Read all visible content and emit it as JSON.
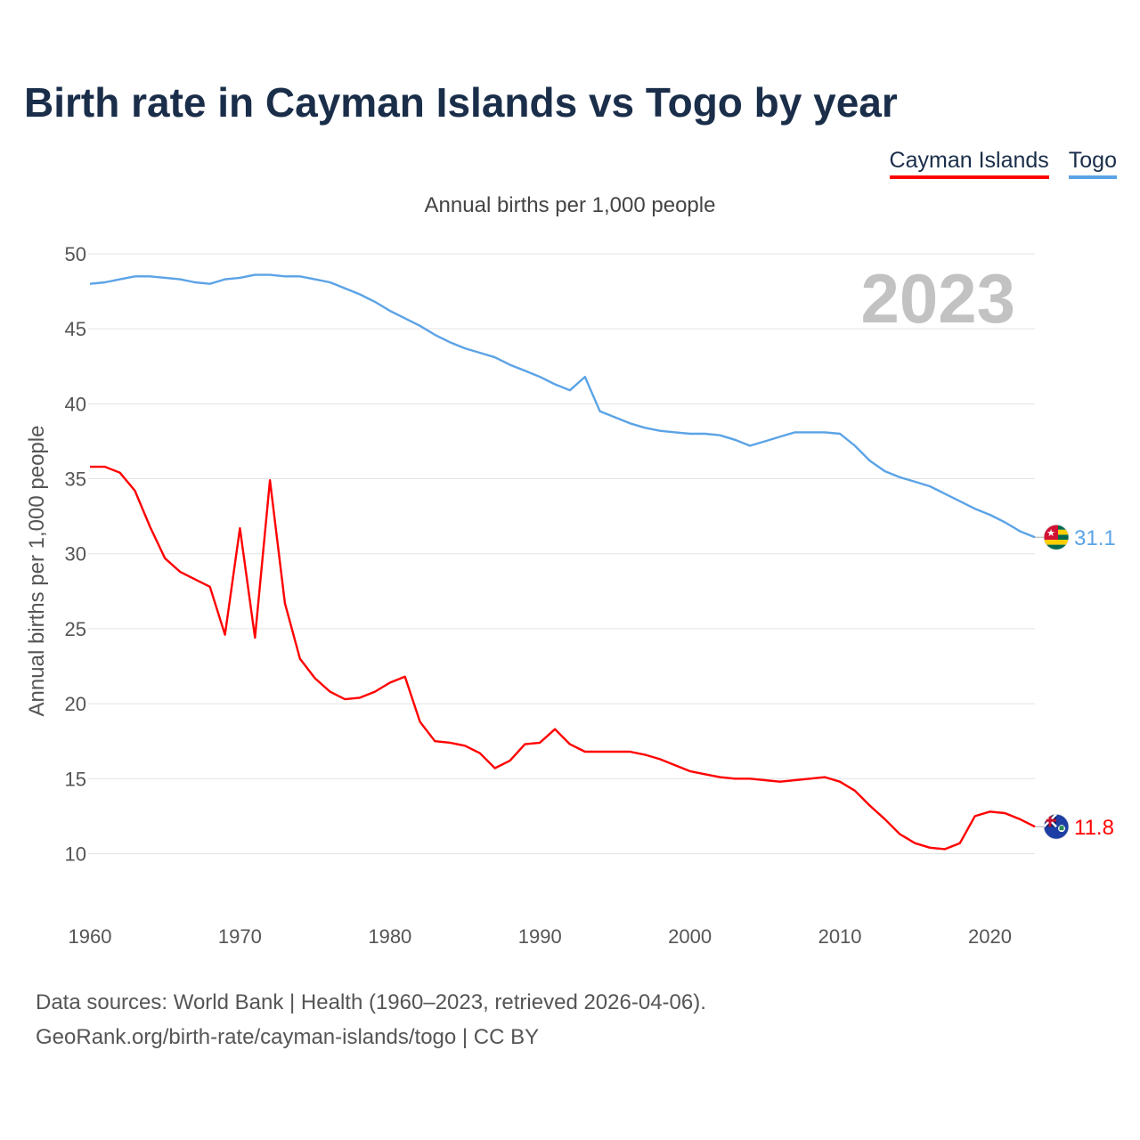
{
  "title": "Birth rate in Cayman Islands vs Togo by year",
  "legend": [
    {
      "name": "Cayman Islands",
      "color": "#ff0000"
    },
    {
      "name": "Togo",
      "color": "#5ba3e6"
    }
  ],
  "subtitle": "Annual births per 1,000 people",
  "year_label": "2023",
  "source_line1": "Data sources: World Bank | Health (1960–2023, retrieved 2026-04-06).",
  "source_line2": "GeoRank.org/birth-rate/cayman-islands/togo | CC BY",
  "chart_data": {
    "type": "line",
    "title": "Birth rate in Cayman Islands vs Togo by year",
    "ylabel": "Annual births per 1,000 people",
    "xlabel": "",
    "xlim": [
      1960,
      2023
    ],
    "ylim": [
      7,
      50
    ],
    "yticks": [
      10,
      15,
      20,
      25,
      30,
      35,
      40,
      45,
      50
    ],
    "xticks": [
      1960,
      1970,
      1980,
      1990,
      2000,
      2010,
      2020
    ],
    "grid": true,
    "legend_position": "top-right",
    "x": [
      1960,
      1961,
      1962,
      1963,
      1964,
      1965,
      1966,
      1967,
      1968,
      1969,
      1970,
      1971,
      1972,
      1973,
      1974,
      1975,
      1976,
      1977,
      1978,
      1979,
      1980,
      1981,
      1982,
      1983,
      1984,
      1985,
      1986,
      1987,
      1988,
      1989,
      1990,
      1991,
      1992,
      1993,
      1994,
      1995,
      1996,
      1997,
      1998,
      1999,
      2000,
      2001,
      2002,
      2003,
      2004,
      2005,
      2006,
      2007,
      2008,
      2009,
      2010,
      2011,
      2012,
      2013,
      2014,
      2015,
      2016,
      2017,
      2018,
      2019,
      2020,
      2021,
      2022,
      2023
    ],
    "series": [
      {
        "name": "Cayman Islands",
        "color": "#ff0000",
        "end_label": "11.8",
        "values": [
          35.8,
          35.8,
          35.4,
          34.2,
          31.8,
          29.7,
          28.8,
          28.3,
          27.8,
          24.6,
          31.7,
          24.4,
          34.9,
          26.7,
          23.0,
          21.7,
          20.8,
          20.3,
          20.4,
          20.8,
          21.4,
          21.8,
          18.8,
          17.5,
          17.4,
          17.2,
          16.7,
          15.7,
          16.2,
          17.3,
          17.4,
          18.3,
          17.3,
          16.8,
          16.8,
          16.8,
          16.8,
          16.6,
          16.3,
          15.9,
          15.5,
          15.3,
          15.1,
          15.0,
          15.0,
          14.9,
          14.8,
          14.9,
          15.0,
          15.1,
          14.8,
          14.2,
          13.2,
          12.3,
          11.3,
          10.7,
          10.4,
          10.3,
          10.7,
          12.5,
          12.8,
          12.7,
          12.3,
          11.8
        ]
      },
      {
        "name": "Togo",
        "color": "#5ba3e6",
        "end_label": "31.1",
        "values": [
          48.0,
          48.1,
          48.3,
          48.5,
          48.5,
          48.4,
          48.3,
          48.1,
          48.0,
          48.3,
          48.4,
          48.6,
          48.6,
          48.5,
          48.5,
          48.3,
          48.1,
          47.7,
          47.3,
          46.8,
          46.2,
          45.7,
          45.2,
          44.6,
          44.1,
          43.7,
          43.4,
          43.1,
          42.6,
          42.2,
          41.8,
          41.3,
          40.9,
          41.8,
          39.5,
          39.1,
          38.7,
          38.4,
          38.2,
          38.1,
          38.0,
          38.0,
          37.9,
          37.6,
          37.2,
          37.5,
          37.8,
          38.1,
          38.1,
          38.1,
          38.0,
          37.2,
          36.2,
          35.5,
          35.1,
          34.8,
          34.5,
          34.0,
          33.5,
          33.0,
          32.6,
          32.1,
          31.5,
          31.1
        ]
      }
    ]
  }
}
